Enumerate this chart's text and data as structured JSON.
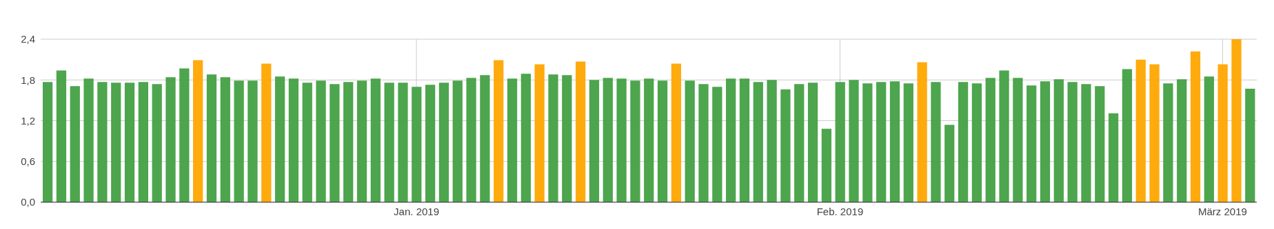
{
  "chart_data": {
    "type": "bar",
    "x": [
      "2018-12-05",
      "2018-12-06",
      "2018-12-07",
      "2018-12-08",
      "2018-12-09",
      "2018-12-10",
      "2018-12-11",
      "2018-12-12",
      "2018-12-13",
      "2018-12-14",
      "2018-12-15",
      "2018-12-16",
      "2018-12-17",
      "2018-12-18",
      "2018-12-19",
      "2018-12-20",
      "2018-12-21",
      "2018-12-22",
      "2018-12-23",
      "2018-12-24",
      "2018-12-25",
      "2018-12-26",
      "2018-12-27",
      "2018-12-28",
      "2018-12-29",
      "2018-12-30",
      "2018-12-31",
      "2019-01-01",
      "2019-01-02",
      "2019-01-03",
      "2019-01-04",
      "2019-01-05",
      "2019-01-06",
      "2019-01-07",
      "2019-01-08",
      "2019-01-09",
      "2019-01-10",
      "2019-01-11",
      "2019-01-12",
      "2019-01-13",
      "2019-01-14",
      "2019-01-15",
      "2019-01-16",
      "2019-01-17",
      "2019-01-18",
      "2019-01-19",
      "2019-01-20",
      "2019-01-21",
      "2019-01-22",
      "2019-01-23",
      "2019-01-24",
      "2019-01-25",
      "2019-01-26",
      "2019-01-27",
      "2019-01-28",
      "2019-01-29",
      "2019-01-30",
      "2019-01-31",
      "2019-02-01",
      "2019-02-02",
      "2019-02-03",
      "2019-02-04",
      "2019-02-05",
      "2019-02-06",
      "2019-02-07",
      "2019-02-08",
      "2019-02-09",
      "2019-02-10",
      "2019-02-11",
      "2019-02-12",
      "2019-02-13",
      "2019-02-14",
      "2019-02-15",
      "2019-02-16",
      "2019-02-17",
      "2019-02-18",
      "2019-02-19",
      "2019-02-20",
      "2019-02-21",
      "2019-02-22",
      "2019-02-23",
      "2019-02-24",
      "2019-02-25",
      "2019-02-26",
      "2019-02-27",
      "2019-02-28",
      "2019-03-01",
      "2019-03-02",
      "2019-03-03"
    ],
    "values": [
      1.77,
      1.94,
      1.71,
      1.82,
      1.77,
      1.76,
      1.76,
      1.77,
      1.74,
      1.84,
      1.97,
      2.09,
      1.88,
      1.84,
      1.79,
      1.79,
      2.04,
      1.85,
      1.82,
      1.76,
      1.79,
      1.74,
      1.77,
      1.79,
      1.82,
      1.76,
      1.76,
      1.7,
      1.73,
      1.76,
      1.79,
      1.83,
      1.87,
      2.09,
      1.82,
      1.89,
      2.03,
      1.88,
      1.87,
      2.07,
      1.8,
      1.83,
      1.82,
      1.79,
      1.82,
      1.79,
      2.04,
      1.79,
      1.74,
      1.7,
      1.82,
      1.82,
      1.77,
      1.8,
      1.66,
      1.74,
      1.76,
      1.08,
      1.77,
      1.8,
      1.75,
      1.77,
      1.78,
      1.75,
      2.06,
      1.77,
      1.14,
      1.77,
      1.75,
      1.83,
      1.94,
      1.83,
      1.72,
      1.78,
      1.81,
      1.77,
      1.74,
      1.71,
      1.31,
      1.96,
      2.1,
      2.03,
      1.75,
      1.81,
      2.22,
      1.85,
      2.03,
      2.4,
      1.67
    ],
    "colors": [
      "#43a043",
      "#43a043",
      "#43a043",
      "#43a043",
      "#43a043",
      "#43a043",
      "#43a043",
      "#43a043",
      "#43a043",
      "#43a043",
      "#43a043",
      "#ffa500",
      "#43a043",
      "#43a043",
      "#43a043",
      "#43a043",
      "#ffa500",
      "#43a043",
      "#43a043",
      "#43a043",
      "#43a043",
      "#43a043",
      "#43a043",
      "#43a043",
      "#43a043",
      "#43a043",
      "#43a043",
      "#43a043",
      "#43a043",
      "#43a043",
      "#43a043",
      "#43a043",
      "#43a043",
      "#ffa500",
      "#43a043",
      "#43a043",
      "#ffa500",
      "#43a043",
      "#43a043",
      "#ffa500",
      "#43a043",
      "#43a043",
      "#43a043",
      "#43a043",
      "#43a043",
      "#43a043",
      "#ffa500",
      "#43a043",
      "#43a043",
      "#43a043",
      "#43a043",
      "#43a043",
      "#43a043",
      "#43a043",
      "#43a043",
      "#43a043",
      "#43a043",
      "#43a043",
      "#43a043",
      "#43a043",
      "#43a043",
      "#43a043",
      "#43a043",
      "#43a043",
      "#ffa500",
      "#43a043",
      "#43a043",
      "#43a043",
      "#43a043",
      "#43a043",
      "#43a043",
      "#43a043",
      "#43a043",
      "#43a043",
      "#43a043",
      "#43a043",
      "#43a043",
      "#43a043",
      "#43a043",
      "#43a043",
      "#ffa500",
      "#ffa500",
      "#43a043",
      "#43a043",
      "#ffa500",
      "#43a043",
      "#ffa500",
      "#ffa500",
      "#43a043"
    ],
    "xlim": [
      "2018-12-04T12:00",
      "2019-03-03T12:00"
    ],
    "xticks": [
      {
        "value": "2019-01-01",
        "label": "Jan. 2019"
      },
      {
        "value": "2019-02-01",
        "label": "Feb. 2019"
      },
      {
        "value": "2019-03-01",
        "label": "März 2019"
      }
    ],
    "ylim": [
      0,
      2.4
    ],
    "yticks": [
      {
        "value": 0,
        "label": "0,0"
      },
      {
        "value": 0.6,
        "label": "0,6"
      },
      {
        "value": 1.2,
        "label": "1,2"
      },
      {
        "value": 1.8,
        "label": "1,8"
      },
      {
        "value": 2.4,
        "label": "2,4"
      }
    ],
    "grid": true,
    "legend": false
  }
}
